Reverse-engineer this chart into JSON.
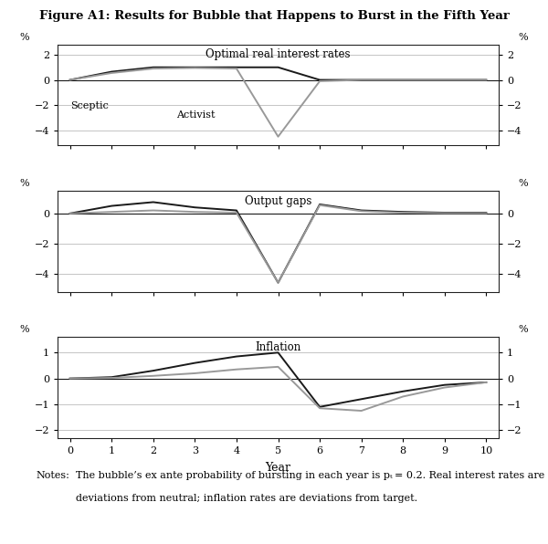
{
  "title": "Figure A1: Results for Bubble that Happens to Burst in the Fifth Year",
  "x": [
    0,
    1,
    2,
    3,
    4,
    5,
    6,
    7,
    8,
    9,
    10
  ],
  "panel1_title": "Optimal real interest rates",
  "panel1_sceptic": [
    0.0,
    0.65,
    1.0,
    1.0,
    1.0,
    1.0,
    0.0,
    0.0,
    0.0,
    0.0,
    0.0
  ],
  "panel1_activist": [
    0.0,
    0.55,
    0.9,
    0.95,
    0.9,
    -4.5,
    -0.1,
    0.0,
    0.0,
    0.0,
    0.0
  ],
  "panel1_ylim": [
    -5.2,
    2.8
  ],
  "panel1_yticks": [
    -4,
    -2,
    0,
    2
  ],
  "panel2_title": "Output gaps",
  "panel2_sceptic": [
    0.0,
    0.5,
    0.75,
    0.4,
    0.2,
    -4.6,
    0.6,
    0.2,
    0.1,
    0.05,
    0.05
  ],
  "panel2_activist": [
    0.0,
    0.1,
    0.2,
    0.1,
    0.05,
    -4.6,
    0.55,
    0.15,
    0.05,
    0.02,
    0.02
  ],
  "panel2_ylim": [
    -5.2,
    1.5
  ],
  "panel2_yticks": [
    -4,
    -2,
    0
  ],
  "panel3_title": "Inflation",
  "panel3_sceptic": [
    0.0,
    0.05,
    0.3,
    0.6,
    0.85,
    1.0,
    -1.1,
    -0.8,
    -0.5,
    -0.25,
    -0.15
  ],
  "panel3_activist": [
    0.0,
    0.02,
    0.1,
    0.2,
    0.35,
    0.45,
    -1.15,
    -1.25,
    -0.7,
    -0.35,
    -0.15
  ],
  "panel3_ylim": [
    -2.3,
    1.6
  ],
  "panel3_yticks": [
    -2,
    -1,
    0,
    1
  ],
  "sceptic_color": "#1a1a1a",
  "activist_color": "#999999",
  "sceptic_label": "Sceptic",
  "activist_label": "Activist",
  "xlabel": "Year",
  "line_width": 1.4,
  "background_color": "#ffffff",
  "grid_color": "#bbbbbb",
  "note_line1": "Notes: The bubble’s ex ante probability of bursting in each year is p",
  "note_sub": "t",
  "note_line1b": " = 0.2. Real interest rates are",
  "note_line2": "deviations from neutral; inflation rates are deviations from target."
}
